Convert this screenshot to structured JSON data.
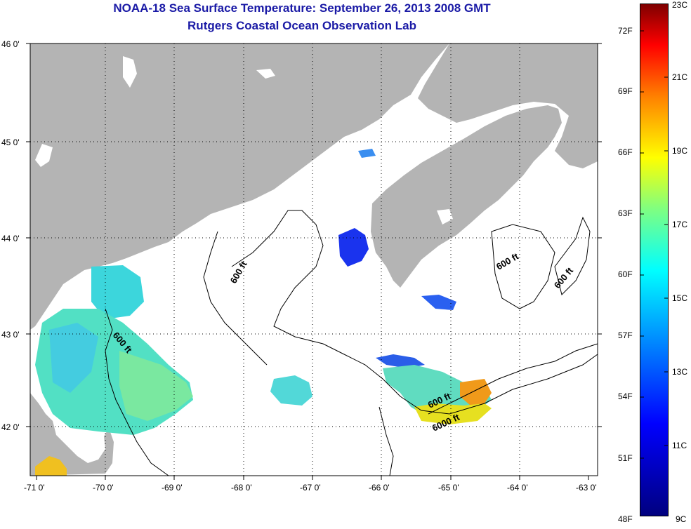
{
  "header": {
    "title": "NOAA-18 Sea Surface Temperature:  September 26, 2013 2008 GMT",
    "subtitle": "Rutgers Coastal Ocean Observation Lab"
  },
  "map": {
    "lat_labels": [
      "46 0'",
      "45 0'",
      "44 0'",
      "43 0'",
      "42 0'"
    ],
    "lon_labels": [
      "-71 0'",
      "-70 0'",
      "-69 0'",
      "-68 0'",
      "-67 0'",
      "-66 0'",
      "-65 0'",
      "-64 0'",
      "-63 0'"
    ],
    "contour_labels": [
      "600 ft",
      "600 ft",
      "600 ft",
      "600 ft",
      "600 ft",
      "6000 ft"
    ],
    "land_color": "#b4b4b4",
    "ocean_color": "#ffffff"
  },
  "colorbar": {
    "fahrenheit_labels": [
      "72F",
      "69F",
      "66F",
      "63F",
      "60F",
      "57F",
      "54F",
      "51F",
      "48F"
    ],
    "celsius_labels": [
      "23C",
      "21C",
      "19C",
      "17C",
      "15C",
      "13C",
      "11C",
      "9C"
    ],
    "colors": [
      "#00007f",
      "#0000ff",
      "#0080ff",
      "#00ffff",
      "#80ff80",
      "#ffff00",
      "#ff8000",
      "#ff0000",
      "#7f0000"
    ]
  }
}
